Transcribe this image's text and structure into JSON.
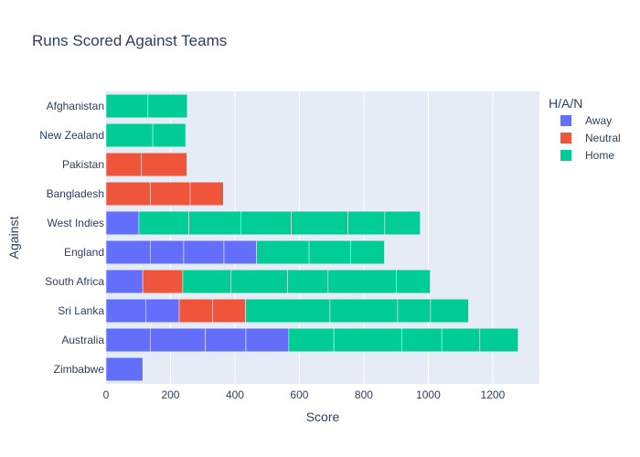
{
  "chart_data": {
    "type": "bar",
    "orientation": "horizontal",
    "barmode": "stack",
    "title": "Runs Scored Against Teams",
    "xlabel": "Score",
    "ylabel": "Against",
    "xlim": [
      0,
      1345
    ],
    "xticks": [
      0,
      200,
      400,
      600,
      800,
      1000,
      1200
    ],
    "xtick_labels": [
      "0",
      "200",
      "400",
      "600",
      "800",
      "1000",
      "1200"
    ],
    "grid": true,
    "legend": {
      "title": "H/A/N",
      "position": "top-right",
      "entries": [
        {
          "name": "Away",
          "color": "#636efa"
        },
        {
          "name": "Neutral",
          "color": "#ef553b"
        },
        {
          "name": "Home",
          "color": "#00cc96"
        }
      ]
    },
    "categories": [
      "Afghanistan",
      "New Zealand",
      "Pakistan",
      "Bangladesh",
      "West Indies",
      "England",
      "South Africa",
      "Sri Lanka",
      "Australia",
      "Zimbabwe"
    ],
    "segments": [
      {
        "category": "Afghanistan",
        "series": "Home",
        "value": 130
      },
      {
        "category": "Afghanistan",
        "series": "Home",
        "value": 122
      },
      {
        "category": "New Zealand",
        "series": "Home",
        "value": 145
      },
      {
        "category": "New Zealand",
        "series": "Home",
        "value": 102
      },
      {
        "category": "Pakistan",
        "series": "Neutral",
        "value": 110
      },
      {
        "category": "Pakistan",
        "series": "Neutral",
        "value": 141
      },
      {
        "category": "Bangladesh",
        "series": "Neutral",
        "value": 137
      },
      {
        "category": "Bangladesh",
        "series": "Neutral",
        "value": 124
      },
      {
        "category": "Bangladesh",
        "series": "Neutral",
        "value": 103
      },
      {
        "category": "West Indies",
        "series": "Away",
        "value": 102
      },
      {
        "category": "West Indies",
        "series": "Home",
        "value": 155
      },
      {
        "category": "West Indies",
        "series": "Home",
        "value": 161
      },
      {
        "category": "West Indies",
        "series": "Home",
        "value": 157
      },
      {
        "category": "West Indies",
        "series": "Home",
        "value": 176
      },
      {
        "category": "West Indies",
        "series": "Home",
        "value": 114
      },
      {
        "category": "West Indies",
        "series": "Home",
        "value": 110
      },
      {
        "category": "England",
        "series": "Away",
        "value": 137
      },
      {
        "category": "England",
        "series": "Away",
        "value": 104
      },
      {
        "category": "England",
        "series": "Away",
        "value": 125
      },
      {
        "category": "England",
        "series": "Away",
        "value": 101
      },
      {
        "category": "England",
        "series": "Home",
        "value": 163
      },
      {
        "category": "England",
        "series": "Home",
        "value": 129
      },
      {
        "category": "England",
        "series": "Home",
        "value": 105
      },
      {
        "category": "South Africa",
        "series": "Away",
        "value": 114
      },
      {
        "category": "South Africa",
        "series": "Neutral",
        "value": 124
      },
      {
        "category": "South Africa",
        "series": "Home",
        "value": 150
      },
      {
        "category": "South Africa",
        "series": "Home",
        "value": 175
      },
      {
        "category": "South Africa",
        "series": "Home",
        "value": 126
      },
      {
        "category": "South Africa",
        "series": "Home",
        "value": 212
      },
      {
        "category": "South Africa",
        "series": "Home",
        "value": 105
      },
      {
        "category": "Sri Lanka",
        "series": "Away",
        "value": 123
      },
      {
        "category": "Sri Lanka",
        "series": "Away",
        "value": 104
      },
      {
        "category": "Sri Lanka",
        "series": "Neutral",
        "value": 103
      },
      {
        "category": "Sri Lanka",
        "series": "Neutral",
        "value": 103
      },
      {
        "category": "Sri Lanka",
        "series": "Home",
        "value": 262
      },
      {
        "category": "Sri Lanka",
        "series": "Home",
        "value": 210
      },
      {
        "category": "Sri Lanka",
        "series": "Home",
        "value": 102
      },
      {
        "category": "Sri Lanka",
        "series": "Home",
        "value": 118
      },
      {
        "category": "Australia",
        "series": "Away",
        "value": 137
      },
      {
        "category": "Australia",
        "series": "Away",
        "value": 171
      },
      {
        "category": "Australia",
        "series": "Away",
        "value": 126
      },
      {
        "category": "Australia",
        "series": "Away",
        "value": 133
      },
      {
        "category": "Australia",
        "series": "Home",
        "value": 140
      },
      {
        "category": "Australia",
        "series": "Home",
        "value": 211
      },
      {
        "category": "Australia",
        "series": "Home",
        "value": 124
      },
      {
        "category": "Australia",
        "series": "Home",
        "value": 118
      },
      {
        "category": "Australia",
        "series": "Home",
        "value": 119
      },
      {
        "category": "Zimbabwe",
        "series": "Away",
        "value": 114
      }
    ]
  }
}
